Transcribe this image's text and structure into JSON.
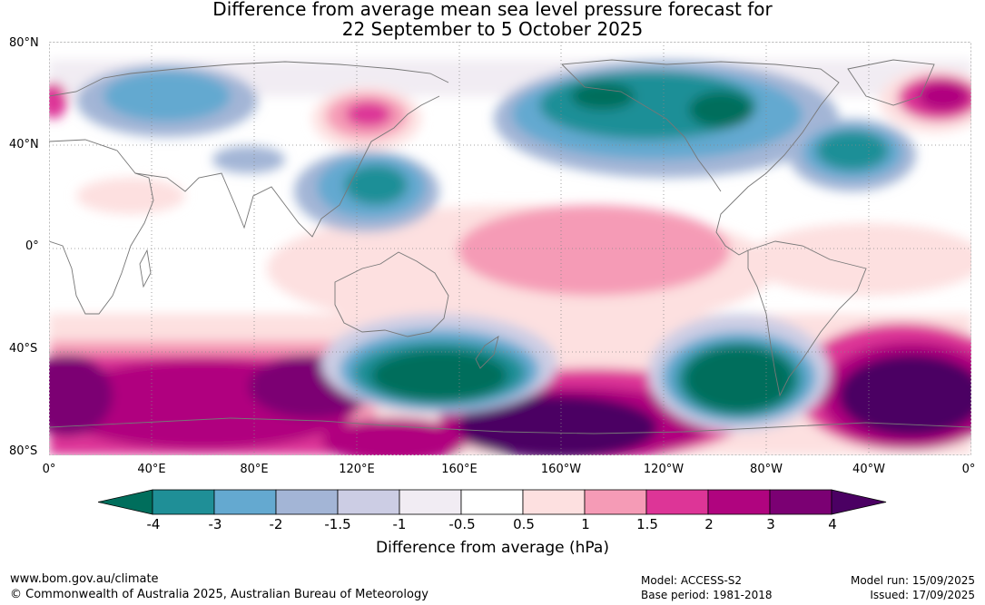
{
  "title_line1": "Difference from average mean sea level pressure forecast for",
  "title_line2": "22 September to 5 October 2025",
  "lat_labels": [
    "80°N",
    "40°N",
    "0°",
    "40°S",
    "80°S"
  ],
  "lon_labels": [
    "0°",
    "40°E",
    "80°E",
    "120°E",
    "160°E",
    "160°W",
    "120°W",
    "80°W",
    "40°W",
    "0°"
  ],
  "colorbar": {
    "ticks": [
      "-4",
      "-3",
      "-2",
      "-1.5",
      "-1",
      "-0.5",
      "0.5",
      "1",
      "1.5",
      "2",
      "3",
      "4"
    ],
    "colors": [
      "#006e5c",
      "#1f8f97",
      "#64a9d0",
      "#a3b5d6",
      "#cccde4",
      "#f1ecf3",
      "#ffffff",
      "#fde0e0",
      "#f59bb6",
      "#dd3597",
      "#b0047f",
      "#7b0073",
      "#4b0063"
    ],
    "title": "Difference from average (hPa)"
  },
  "footer": {
    "url": "www.bom.gov.au/climate",
    "copyright": "© Commonwealth of Australia 2025, Australian Bureau of Meteorology",
    "model": "Model: ACCESS-S2",
    "base_period": "Base period: 1981-2018",
    "model_run": "Model run: 15/09/2025",
    "issued": "Issued: 17/09/2025"
  }
}
